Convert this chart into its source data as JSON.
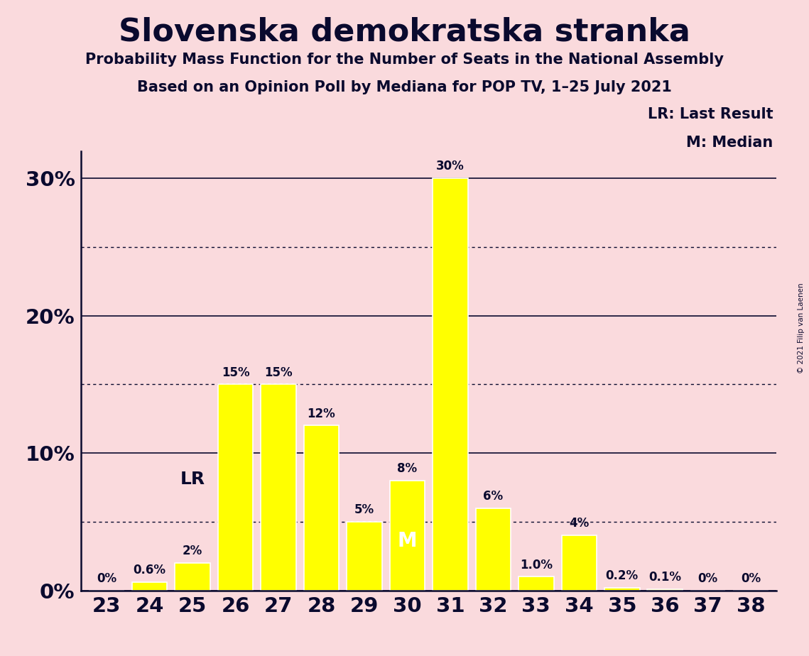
{
  "title": "Slovenska demokratska stranka",
  "subtitle1": "Probability Mass Function for the Number of Seats in the National Assembly",
  "subtitle2": "Based on an Opinion Poll by Mediana for POP TV, 1–25 July 2021",
  "copyright": "© 2021 Filip van Laenen",
  "seats": [
    23,
    24,
    25,
    26,
    27,
    28,
    29,
    30,
    31,
    32,
    33,
    34,
    35,
    36,
    37,
    38
  ],
  "probabilities": [
    0.0,
    0.6,
    2.0,
    15.0,
    15.0,
    12.0,
    5.0,
    8.0,
    30.0,
    6.0,
    1.0,
    4.0,
    0.2,
    0.1,
    0.0,
    0.0
  ],
  "bar_labels": [
    "0%",
    "0.6%",
    "2%",
    "15%",
    "15%",
    "12%",
    "5%",
    "8%",
    "30%",
    "6%",
    "1.0%",
    "4%",
    "0.2%",
    "0.1%",
    "0%",
    "0%"
  ],
  "bar_color": "#FFFF00",
  "bar_edge_color": "#FFFFFF",
  "background_color": "#FADADD",
  "text_color": "#0a0a2e",
  "LR_seat": 25,
  "median_seat": 30,
  "legend_LR": "LR: Last Result",
  "legend_M": "M: Median",
  "ylim": [
    0,
    32
  ],
  "yticks": [
    0,
    10,
    20,
    30
  ],
  "ytick_labels": [
    "0%",
    "10%",
    "20%",
    "30%"
  ],
  "dotted_lines": [
    5,
    15,
    25
  ],
  "solid_lines": [
    10,
    20,
    30
  ],
  "bar_width": 0.82
}
